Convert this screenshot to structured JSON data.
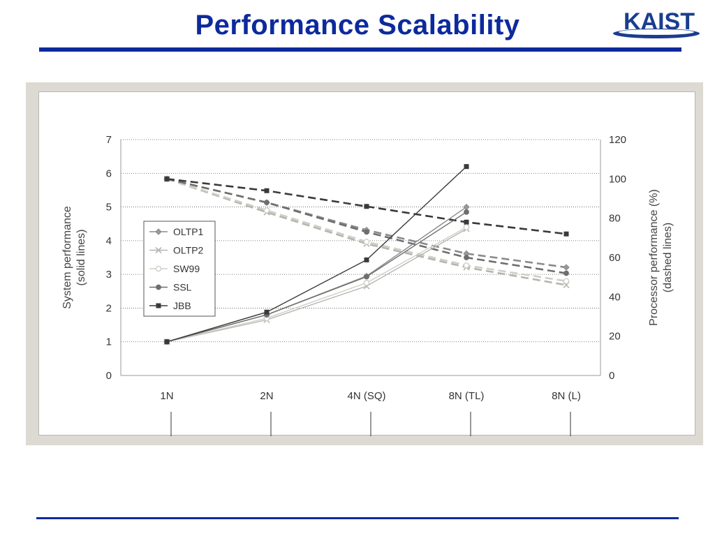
{
  "slide": {
    "title": "Performance Scalability",
    "logo_text": "KAIST",
    "colors": {
      "title": "#0d2a9c",
      "rule": "#0d2a9c",
      "logo": "#1a3d8f",
      "frame": "#dcdad2"
    }
  },
  "chart_data": {
    "type": "line",
    "categories": [
      "1N",
      "2N",
      "4N (SQ)",
      "8N (TL)",
      "8N (L)"
    ],
    "y_left_label": [
      "System performance",
      "(solid lines)"
    ],
    "y_right_label": [
      "Processor performance (%)",
      "(dashed lines)"
    ],
    "y_left_ticks": [
      "0",
      "1",
      "2",
      "3",
      "4",
      "5",
      "6",
      "7"
    ],
    "y_right_ticks": [
      "0",
      "20",
      "40",
      "60",
      "80",
      "100",
      "120"
    ],
    "ylim_left": [
      0,
      7
    ],
    "ylim_right": [
      0,
      120
    ],
    "grid": "horizontal dotted",
    "legend_position": "left-middle",
    "legend": [
      "OLTP1",
      "OLTP2",
      "SW99",
      "SSL",
      "JBB"
    ],
    "series": [
      {
        "name": "OLTP1",
        "color": "#8a8a8a",
        "marker": "diamond",
        "system": [
          1.0,
          1.8,
          2.95,
          5.0,
          null
        ],
        "processor": [
          100,
          88,
          74,
          62,
          55
        ]
      },
      {
        "name": "OLTP2",
        "color": "#b5b5b0",
        "marker": "x",
        "system": [
          1.0,
          1.65,
          2.65,
          4.35,
          null
        ],
        "processor": [
          100,
          83,
          67,
          55,
          46
        ]
      },
      {
        "name": "SW99",
        "color": "#cfcfc8",
        "marker": "circle-open",
        "system": [
          1.0,
          1.7,
          2.75,
          4.4,
          null
        ],
        "processor": [
          100,
          84,
          68,
          56,
          48
        ]
      },
      {
        "name": "SSL",
        "color": "#6e6e6e",
        "marker": "circle",
        "system": [
          1.0,
          1.8,
          2.93,
          4.85,
          null
        ],
        "processor": [
          100,
          88,
          73,
          60,
          52
        ]
      },
      {
        "name": "JBB",
        "color": "#3a3a3a",
        "marker": "square",
        "system": [
          1.0,
          1.88,
          3.43,
          6.2,
          null
        ],
        "processor": [
          100,
          94,
          86,
          78,
          72
        ]
      }
    ]
  }
}
